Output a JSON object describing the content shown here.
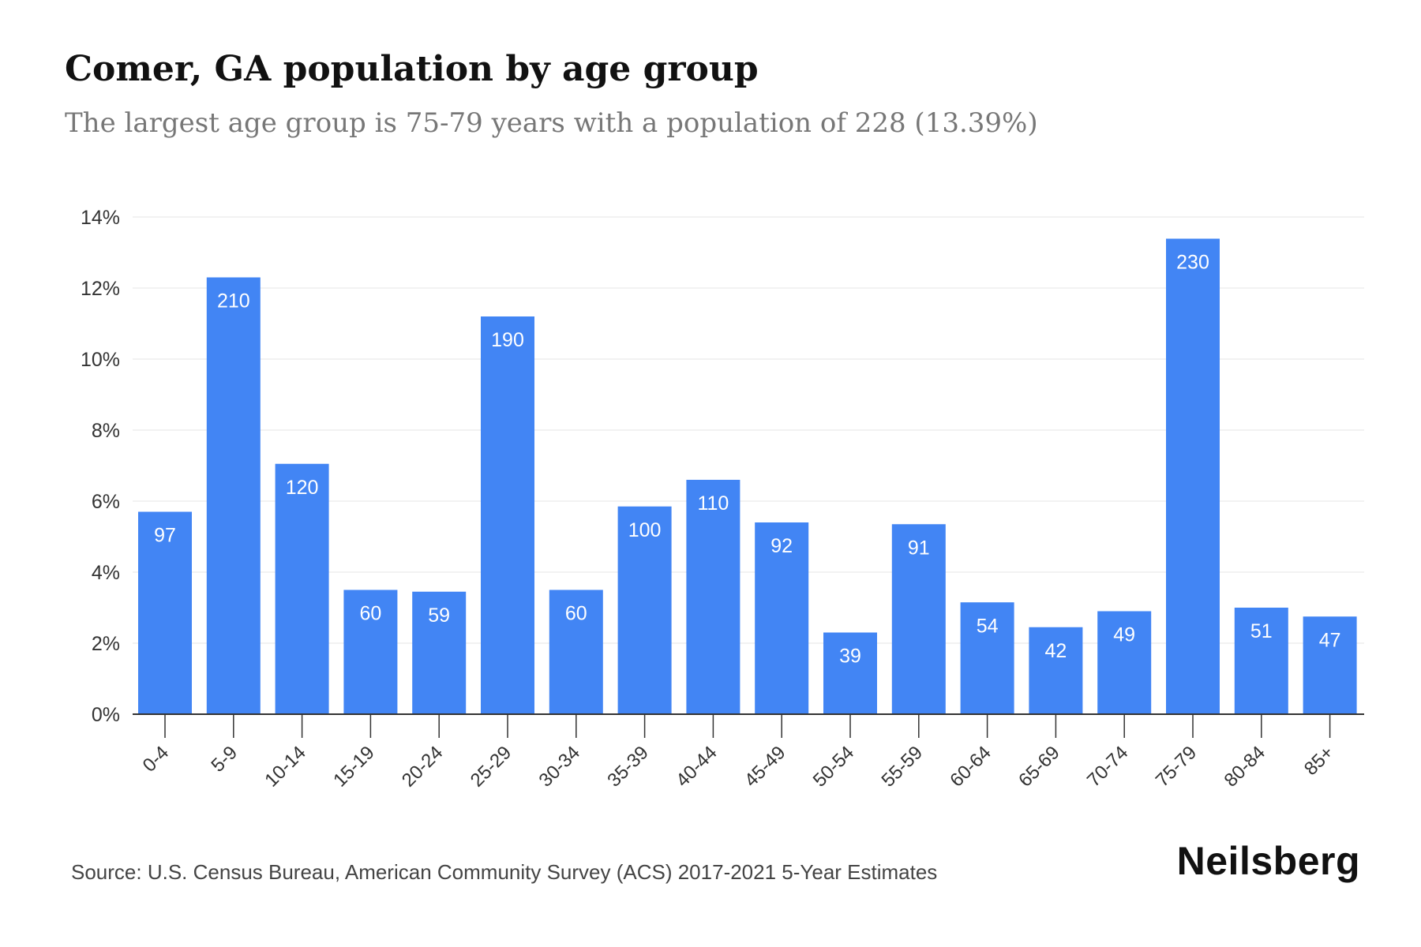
{
  "title": "Comer, GA population by age group",
  "subtitle": "The largest age group is 75-79 years with a population of 228 (13.39%)",
  "source": "Source: U.S. Census Bureau, American Community Survey (ACS) 2017-2021 5-Year Estimates",
  "brand": "Neilsberg",
  "colors": {
    "bar": "#4285f4",
    "bar_label": "#ffffff",
    "grid": "#eeeeee",
    "axis": "#333333",
    "tick_label": "#333333"
  },
  "chart_data": {
    "type": "bar",
    "title": "Comer, GA population by age group",
    "subtitle": "The largest age group is 75-79 years with a population of 228 (13.39%)",
    "xlabel": "",
    "ylabel": "",
    "categories": [
      "0-4",
      "5-9",
      "10-14",
      "15-19",
      "20-24",
      "25-29",
      "30-34",
      "35-39",
      "40-44",
      "45-49",
      "50-54",
      "55-59",
      "60-64",
      "65-69",
      "70-74",
      "75-79",
      "80-84",
      "85+"
    ],
    "values": [
      5.7,
      12.3,
      7.05,
      3.5,
      3.45,
      11.2,
      3.5,
      5.85,
      6.6,
      5.4,
      2.3,
      5.35,
      3.15,
      2.45,
      2.9,
      13.39,
      3.0,
      2.75
    ],
    "data_labels": [
      "97",
      "210",
      "120",
      "60",
      "59",
      "190",
      "60",
      "100",
      "110",
      "92",
      "39",
      "91",
      "54",
      "42",
      "49",
      "230",
      "51",
      "47"
    ],
    "value_unit": "%",
    "ylim": [
      0,
      14
    ],
    "yticks": [
      0,
      2,
      4,
      6,
      8,
      10,
      12,
      14
    ],
    "ytick_labels": [
      "0%",
      "2%",
      "4%",
      "6%",
      "8%",
      "10%",
      "12%",
      "14%"
    ],
    "grid": true,
    "legend": "none"
  }
}
